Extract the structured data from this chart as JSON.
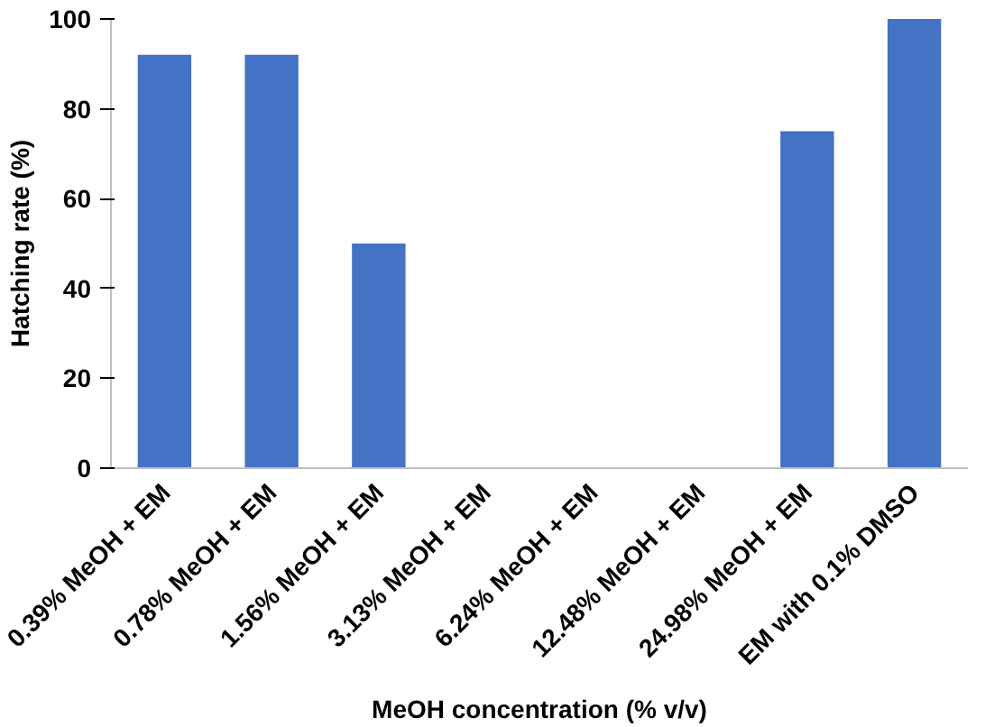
{
  "chart_data": {
    "type": "bar",
    "xlabel": "MeOH concentration (% v/v)",
    "ylabel": "Hatching rate (%)",
    "categories": [
      "0.39% MeOH + EM",
      "0.78% MeOH + EM",
      "1.56% MeOH + EM",
      "3.13% MeOH + EM",
      "6.24% MeOH + EM",
      "12.48% MeOH + EM",
      "24.98% MeOH + EM",
      "EM with 0.1% DMSO"
    ],
    "values": [
      92,
      92,
      50,
      0,
      0,
      0,
      75,
      100
    ],
    "color": "#4472c4",
    "ylim": [
      0,
      100
    ],
    "yticks": [
      0,
      20,
      40,
      60,
      80,
      100
    ],
    "grid": false
  }
}
